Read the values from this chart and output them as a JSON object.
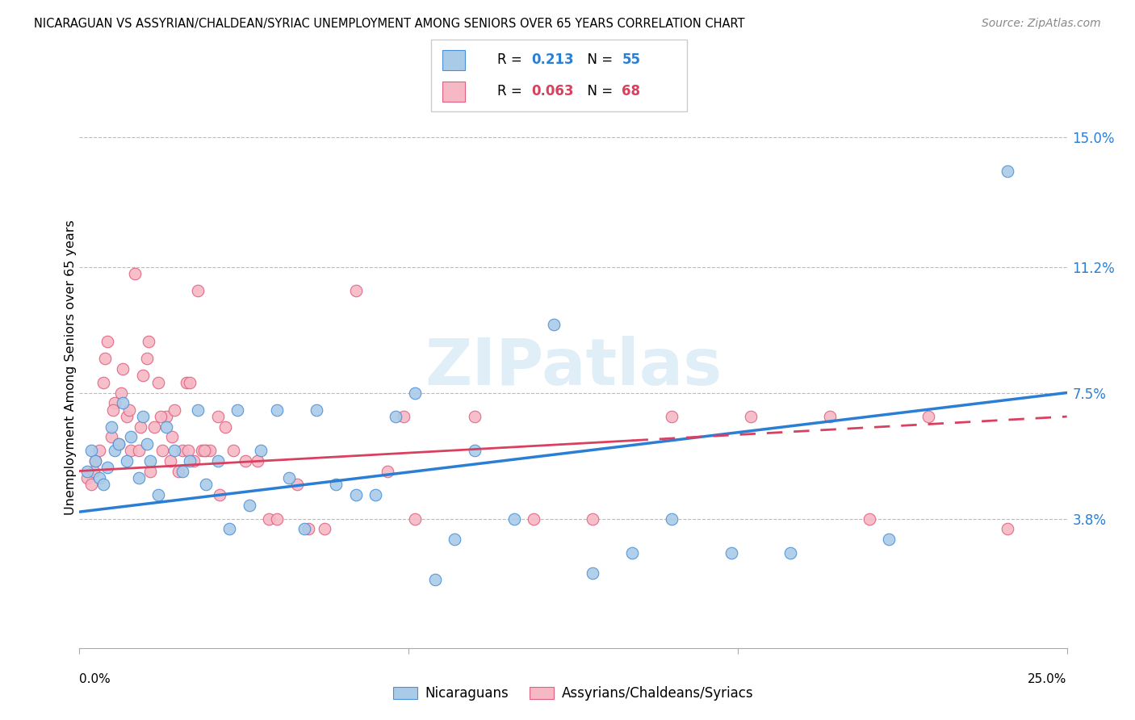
{
  "title": "NICARAGUAN VS ASSYRIAN/CHALDEAN/SYRIAC UNEMPLOYMENT AMONG SENIORS OVER 65 YEARS CORRELATION CHART",
  "source": "Source: ZipAtlas.com",
  "ylabel": "Unemployment Among Seniors over 65 years",
  "ytick_labels": [
    "3.8%",
    "7.5%",
    "11.2%",
    "15.0%"
  ],
  "ytick_values": [
    3.8,
    7.5,
    11.2,
    15.0
  ],
  "xlim": [
    0.0,
    25.0
  ],
  "ylim": [
    0.0,
    16.5
  ],
  "legend_blue_r": "0.213",
  "legend_blue_n": "55",
  "legend_pink_r": "0.063",
  "legend_pink_n": "68",
  "legend_blue_label": "Nicaraguans",
  "legend_pink_label": "Assyrians/Chaldeans/Syriacs",
  "blue_color": "#aacbe8",
  "pink_color": "#f5b8c4",
  "blue_edge_color": "#4a90d9",
  "pink_edge_color": "#e06080",
  "line_blue_color": "#2a7fd4",
  "line_pink_color": "#d94060",
  "watermark": "ZIPatlas",
  "blue_x": [
    0.2,
    0.3,
    0.4,
    0.5,
    0.6,
    0.7,
    0.8,
    0.9,
    1.0,
    1.1,
    1.2,
    1.3,
    1.5,
    1.6,
    1.7,
    1.8,
    2.0,
    2.2,
    2.4,
    2.6,
    2.8,
    3.0,
    3.2,
    3.5,
    3.8,
    4.0,
    4.3,
    4.6,
    5.0,
    5.3,
    5.7,
    6.0,
    6.5,
    7.0,
    7.5,
    8.0,
    8.5,
    9.0,
    9.5,
    10.0,
    11.0,
    12.0,
    13.0,
    14.0,
    15.0,
    16.5,
    18.0,
    20.5,
    23.5
  ],
  "blue_y": [
    5.2,
    5.8,
    5.5,
    5.0,
    4.8,
    5.3,
    6.5,
    5.8,
    6.0,
    7.2,
    5.5,
    6.2,
    5.0,
    6.8,
    6.0,
    5.5,
    4.5,
    6.5,
    5.8,
    5.2,
    5.5,
    7.0,
    4.8,
    5.5,
    3.5,
    7.0,
    4.2,
    5.8,
    7.0,
    5.0,
    3.5,
    7.0,
    4.8,
    4.5,
    4.5,
    6.8,
    7.5,
    2.0,
    3.2,
    5.8,
    3.8,
    9.5,
    2.2,
    2.8,
    3.8,
    2.8,
    2.8,
    3.2,
    14.0
  ],
  "pink_x": [
    0.2,
    0.3,
    0.4,
    0.5,
    0.6,
    0.7,
    0.8,
    0.9,
    1.0,
    1.1,
    1.2,
    1.3,
    1.4,
    1.5,
    1.6,
    1.7,
    1.8,
    1.9,
    2.0,
    2.1,
    2.2,
    2.3,
    2.4,
    2.5,
    2.6,
    2.7,
    2.8,
    2.9,
    3.0,
    3.1,
    3.2,
    3.3,
    3.5,
    3.7,
    3.9,
    4.2,
    4.8,
    5.5,
    6.2,
    7.0,
    7.8,
    8.5,
    10.0,
    11.5,
    13.0,
    15.0,
    17.0,
    19.0,
    21.5,
    23.5,
    0.35,
    0.65,
    0.85,
    1.05,
    1.25,
    1.55,
    1.75,
    2.05,
    2.35,
    2.75,
    3.15,
    3.55,
    4.5,
    5.0,
    5.8,
    8.2,
    20.0
  ],
  "pink_y": [
    5.0,
    4.8,
    5.5,
    5.8,
    7.8,
    9.0,
    6.2,
    7.2,
    6.0,
    8.2,
    6.8,
    5.8,
    11.0,
    5.8,
    8.0,
    8.5,
    5.2,
    6.5,
    7.8,
    5.8,
    6.8,
    5.5,
    7.0,
    5.2,
    5.8,
    7.8,
    7.8,
    5.5,
    10.5,
    5.8,
    5.8,
    5.8,
    6.8,
    6.5,
    5.8,
    5.5,
    3.8,
    4.8,
    3.5,
    10.5,
    5.2,
    3.8,
    6.8,
    3.8,
    3.8,
    6.8,
    6.8,
    6.8,
    6.8,
    3.5,
    5.2,
    8.5,
    7.0,
    7.5,
    7.0,
    6.5,
    9.0,
    6.8,
    6.2,
    5.8,
    5.8,
    4.5,
    5.5,
    3.8,
    3.5,
    6.8,
    3.8
  ],
  "blue_line_x0": 0.0,
  "blue_line_y0": 4.0,
  "blue_line_x1": 25.0,
  "blue_line_y1": 7.5,
  "pink_line_x0": 0.0,
  "pink_line_y0": 5.2,
  "pink_line_x1": 25.0,
  "pink_line_y1": 6.8,
  "pink_solid_end": 14.0,
  "xtick_positions": [
    0.0,
    8.33,
    16.67,
    25.0
  ]
}
